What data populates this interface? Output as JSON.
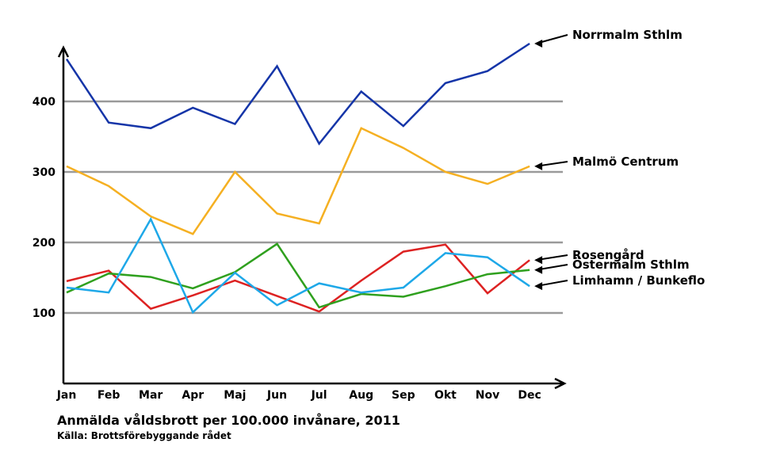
{
  "chart_data": {
    "type": "line",
    "title": "Anmälda våldsbrott per 100.000 invånare, 2011",
    "source": "Källa: Brottsförebyggande rådet",
    "categories": [
      "Jan",
      "Feb",
      "Mar",
      "Apr",
      "Maj",
      "Jun",
      "Jul",
      "Aug",
      "Sep",
      "Okt",
      "Nov",
      "Dec"
    ],
    "ylim": [
      0,
      470
    ],
    "yticks": [
      100,
      200,
      300,
      400
    ],
    "ytick_labels": [
      "100",
      "200",
      "300",
      "400"
    ],
    "grid": true,
    "legend": "labels at right end of each line with arrows",
    "series": [
      {
        "name": "Norrmalm Sthlm",
        "color": "#1535a8",
        "values": [
          460,
          370,
          362,
          391,
          368,
          450,
          340,
          414,
          365,
          426,
          443,
          482
        ]
      },
      {
        "name": "Malmö Centrum",
        "color": "#f5b022",
        "values": [
          308,
          280,
          237,
          212,
          300,
          241,
          227,
          362,
          334,
          300,
          283,
          308
        ]
      },
      {
        "name": "Rosengård",
        "color": "#dd2222",
        "values": [
          145,
          160,
          106,
          125,
          146,
          124,
          102,
          146,
          187,
          197,
          128,
          175
        ]
      },
      {
        "name": "Östermalm Sthlm",
        "color": "#2fa01e",
        "values": [
          129,
          156,
          151,
          135,
          158,
          198,
          108,
          127,
          123,
          138,
          155,
          161
        ]
      },
      {
        "name": "Limhamn / Bunkeflo",
        "color": "#1ea8e8",
        "values": [
          136,
          129,
          233,
          101,
          157,
          111,
          142,
          129,
          136,
          185,
          179,
          138
        ]
      }
    ]
  }
}
